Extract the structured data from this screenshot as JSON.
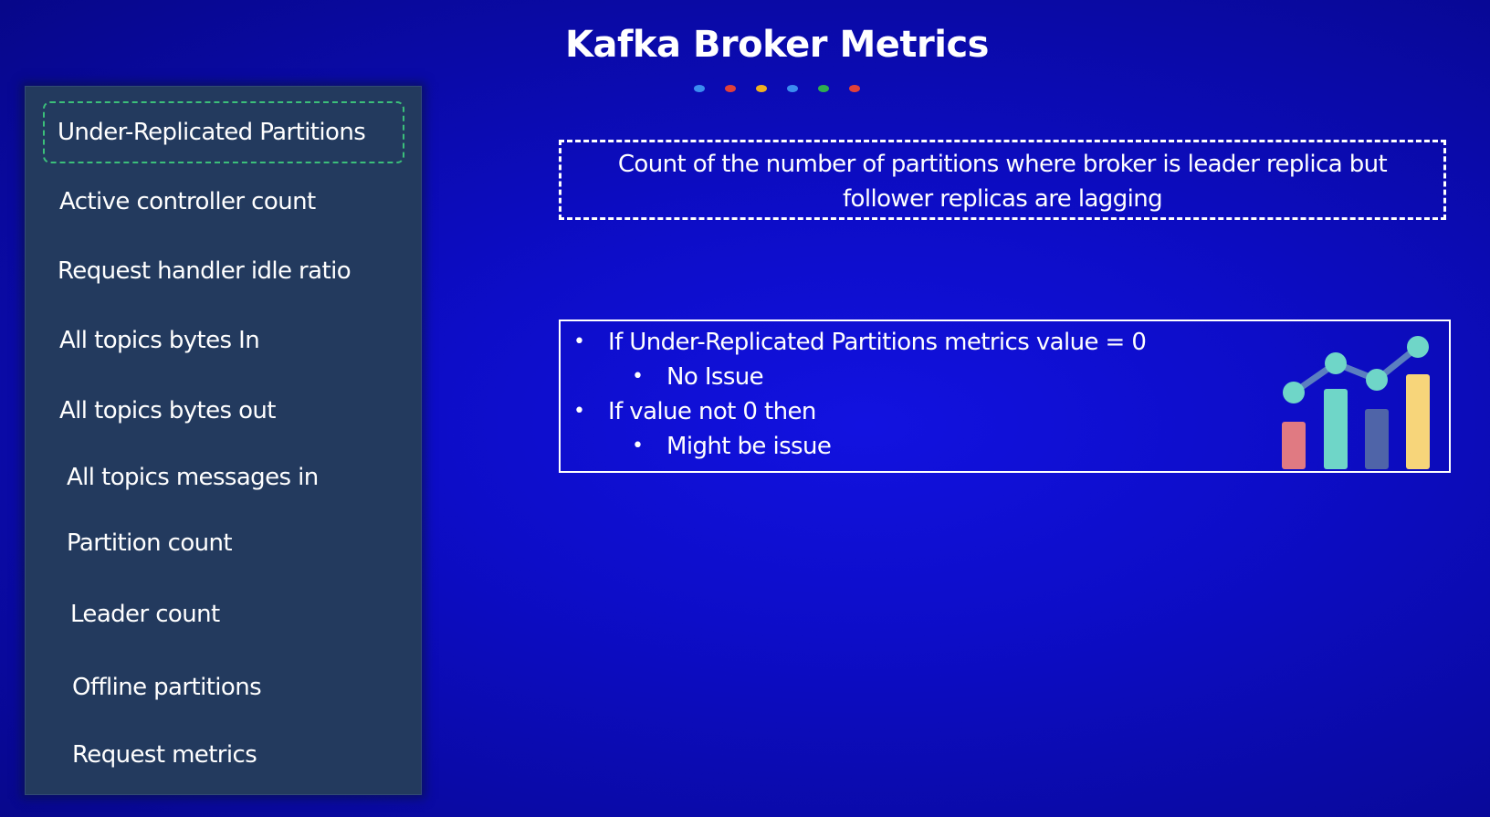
{
  "title": "Kafka Broker Metrics",
  "dot_colors": [
    "#3b8df0",
    "#e0403a",
    "#f0b020",
    "#3b8df0",
    "#2fae4f",
    "#e0403a"
  ],
  "sidebar": {
    "items": [
      {
        "label": "Under-Replicated Partitions"
      },
      {
        "label": "Active controller count"
      },
      {
        "label": "Request handler idle ratio"
      },
      {
        "label": "All topics bytes In"
      },
      {
        "label": "All topics bytes out"
      },
      {
        "label": "All topics messages in"
      },
      {
        "label": "Partition count"
      },
      {
        "label": "Leader count"
      },
      {
        "label": "Offline partitions"
      },
      {
        "label": "Request metrics"
      }
    ]
  },
  "description": {
    "line1": "Count of the number of partitions where broker is leader replica but",
    "line2": "follower replicas are lagging"
  },
  "info": {
    "bullet_glyph": "•",
    "bullets": [
      {
        "text": "If Under-Replicated Partitions metrics value = 0",
        "sub": "No Issue"
      },
      {
        "text": "If  value not 0 then",
        "sub": "Might be issue"
      }
    ]
  },
  "icon": "bar-line-chart-icon",
  "icon_colors": {
    "bar1": "#e07a82",
    "bar2": "#6fd6c8",
    "bar3": "#4f64a8",
    "bar4": "#f7d57a",
    "line": "#5b7fc0",
    "node": "#6fd6c8"
  }
}
